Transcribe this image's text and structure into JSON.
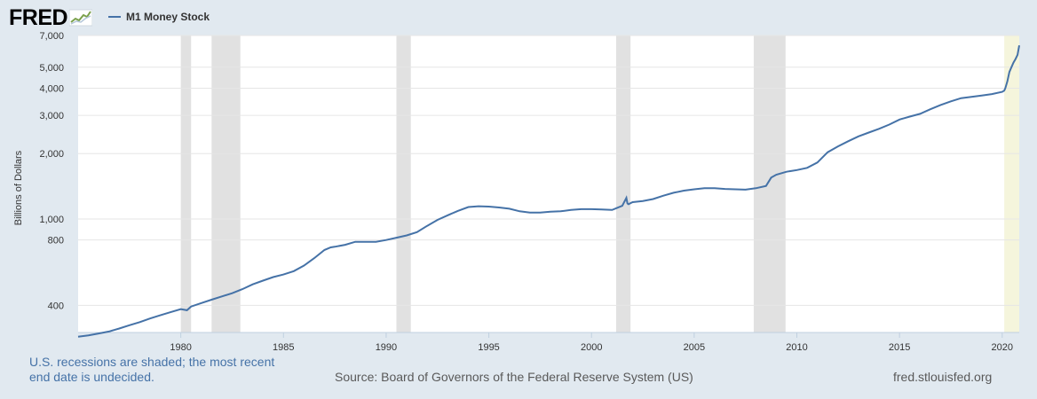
{
  "logo": {
    "text": "FRED"
  },
  "legend": {
    "label": "M1 Money Stock",
    "color": "#4572a7"
  },
  "note": "U.S. recessions are shaded; the most recent end date is undecided.",
  "source": "Source: Board of Governors of the Federal Reserve System (US)",
  "site": "fred.stlouisfed.org",
  "colors": {
    "line": "#4572a7",
    "recession": "#e1e1e1",
    "undecided": "#f5f5dc",
    "background": "#e1e9f0"
  },
  "chart_data": {
    "type": "line",
    "title": "",
    "xlabel": "",
    "ylabel": "Billions of Dollars",
    "yscale": "log",
    "ylim": [
      300,
      7000
    ],
    "xlim": [
      1975.0,
      2020.83
    ],
    "yticks": [
      400,
      800,
      1000,
      2000,
      3000,
      4000,
      5000,
      7000
    ],
    "ytick_labels": [
      "400",
      "800",
      "1,000",
      "2,000",
      "3,000",
      "4,000",
      "5,000",
      "7,000"
    ],
    "xticks": [
      1980,
      1985,
      1990,
      1995,
      2000,
      2005,
      2010,
      2015,
      2020
    ],
    "xtick_labels": [
      "1980",
      "1985",
      "1990",
      "1995",
      "2000",
      "2005",
      "2010",
      "2015",
      "2020"
    ],
    "grid": true,
    "recessions": [
      [
        1980.0,
        1980.5
      ],
      [
        1981.5,
        1982.9
      ],
      [
        1990.5,
        1991.2
      ],
      [
        2001.2,
        2001.9
      ],
      [
        2007.9,
        2009.45
      ]
    ],
    "undecided_recession": [
      2020.1,
      2020.83
    ],
    "series": [
      {
        "name": "M1 Money Stock",
        "x": [
          1975.0,
          1975.5,
          1976.0,
          1976.5,
          1977.0,
          1977.5,
          1978.0,
          1978.5,
          1979.0,
          1979.5,
          1980.0,
          1980.3,
          1980.5,
          1981.0,
          1981.5,
          1982.0,
          1982.5,
          1983.0,
          1983.5,
          1984.0,
          1984.5,
          1985.0,
          1985.5,
          1986.0,
          1986.5,
          1987.0,
          1987.3,
          1987.5,
          1988.0,
          1988.5,
          1989.0,
          1989.5,
          1990.0,
          1990.5,
          1991.0,
          1991.5,
          1992.0,
          1992.5,
          1993.0,
          1993.5,
          1994.0,
          1994.5,
          1995.0,
          1995.5,
          1996.0,
          1996.5,
          1997.0,
          1997.5,
          1998.0,
          1998.5,
          1999.0,
          1999.5,
          2000.0,
          2000.5,
          2001.0,
          2001.5,
          2001.7,
          2001.75,
          2001.8,
          2002.0,
          2002.5,
          2003.0,
          2003.5,
          2004.0,
          2004.5,
          2005.0,
          2005.5,
          2006.0,
          2006.5,
          2007.0,
          2007.5,
          2008.0,
          2008.5,
          2008.75,
          2009.0,
          2009.5,
          2010.0,
          2010.5,
          2011.0,
          2011.5,
          2012.0,
          2012.5,
          2013.0,
          2013.5,
          2014.0,
          2014.5,
          2015.0,
          2015.5,
          2016.0,
          2016.5,
          2017.0,
          2017.5,
          2018.0,
          2018.5,
          2019.0,
          2019.5,
          2020.0,
          2020.1,
          2020.15,
          2020.25,
          2020.35,
          2020.45,
          2020.55,
          2020.65,
          2020.75,
          2020.83
        ],
        "values": [
          287,
          291,
          297,
          303,
          313,
          324,
          335,
          348,
          360,
          372,
          384,
          380,
          395,
          410,
          425,
          440,
          455,
          475,
          500,
          520,
          540,
          555,
          575,
          610,
          660,
          720,
          740,
          745,
          760,
          785,
          785,
          785,
          800,
          820,
          840,
          870,
          930,
          990,
          1040,
          1090,
          1135,
          1145,
          1140,
          1130,
          1115,
          1085,
          1070,
          1070,
          1080,
          1085,
          1100,
          1110,
          1110,
          1105,
          1100,
          1150,
          1250,
          1180,
          1170,
          1195,
          1210,
          1235,
          1280,
          1320,
          1350,
          1370,
          1385,
          1385,
          1375,
          1370,
          1365,
          1385,
          1420,
          1550,
          1600,
          1650,
          1680,
          1720,
          1820,
          2030,
          2160,
          2280,
          2400,
          2500,
          2600,
          2720,
          2870,
          2960,
          3050,
          3200,
          3350,
          3480,
          3600,
          3650,
          3700,
          3760,
          3850,
          3900,
          4000,
          4300,
          4750,
          5000,
          5250,
          5450,
          5700,
          6300
        ]
      }
    ]
  }
}
